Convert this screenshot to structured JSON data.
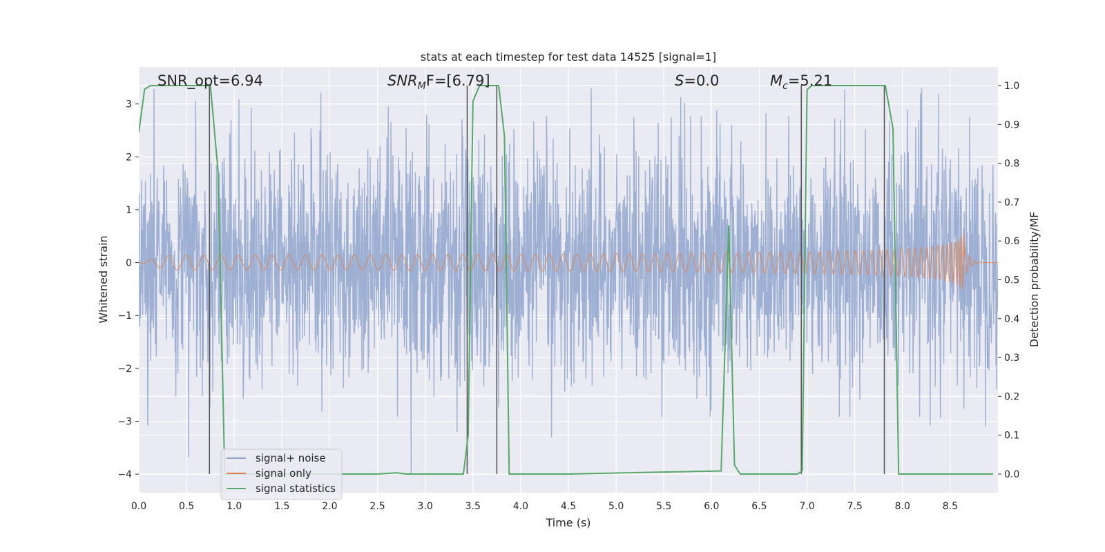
{
  "chart_data": {
    "type": "line",
    "title": "stats at each timestep for test data 14525 [signal=1]",
    "xlabel": "Time (s)",
    "ylabel_left": "Whitened strain",
    "ylabel_right": "Detection probability/MF",
    "xlim": [
      0.0,
      9.0
    ],
    "ylim_left": [
      -4.35,
      3.7
    ],
    "ylim_right": [
      -0.048,
      1.048
    ],
    "x_ticks": [
      "0.0",
      "0.5",
      "1.0",
      "1.5",
      "2.0",
      "2.5",
      "3.0",
      "3.5",
      "4.0",
      "4.5",
      "5.0",
      "5.5",
      "6.0",
      "6.5",
      "7.0",
      "7.5",
      "8.0",
      "8.5"
    ],
    "y_ticks_left": [
      "3",
      "2",
      "1",
      "0",
      "−1",
      "−2",
      "−3",
      "−4"
    ],
    "y_ticks_right": [
      "1.0",
      "0.9",
      "0.8",
      "0.7",
      "0.6",
      "0.5",
      "0.4",
      "0.3",
      "0.2",
      "0.1",
      "0.0"
    ],
    "grid": true,
    "legend_position": "lower-left",
    "annotations": {
      "snr_opt": "SNR_opt=6.94",
      "snr_mf_main": "SNR",
      "snr_mf_sub": "M",
      "snr_mf_rest": "F=[6.79]",
      "s_main": "S",
      "s_rest": "=0.0",
      "mc_main": "M",
      "mc_sub": "c",
      "mc_rest": "=5.21"
    },
    "series": [
      {
        "name": "signal+ noise",
        "color": "#8fa4cc",
        "description_values": "whitened noisy strain, approx. gaussian with sigma ~1, peaks to +/-3.3",
        "noise_sigma": 1.0,
        "envelope_max": 3.3
      },
      {
        "name": "signal only",
        "color": "#dd8452",
        "chirp_start_time": 0.0,
        "merger_time": 8.65,
        "max_amplitude": 0.62
      },
      {
        "name": "signal statistics",
        "color": "#55a868",
        "x": [
          0.0,
          0.06,
          0.12,
          0.75,
          0.83,
          0.9,
          1.5,
          2.5,
          2.7,
          2.8,
          3.4,
          3.45,
          3.5,
          3.57,
          3.77,
          3.83,
          3.88,
          4.5,
          6.1,
          6.18,
          6.24,
          6.3,
          6.9,
          6.95,
          7.0,
          7.05,
          7.82,
          7.9,
          7.96,
          8.5,
          8.95
        ],
        "y": [
          0.88,
          0.99,
          1.0,
          1.0,
          0.78,
          0.0,
          0.0,
          0.0,
          0.003,
          0.0,
          0.0,
          0.1,
          0.96,
          1.0,
          1.0,
          0.87,
          0.0,
          0.0,
          0.008,
          0.64,
          0.023,
          0.0,
          0.0,
          0.008,
          0.99,
          1.0,
          1.0,
          0.89,
          0.0,
          0.0,
          0.0
        ]
      }
    ],
    "vertical_lines_x": [
      0.74,
      3.44,
      3.75,
      6.94,
      7.81
    ]
  }
}
